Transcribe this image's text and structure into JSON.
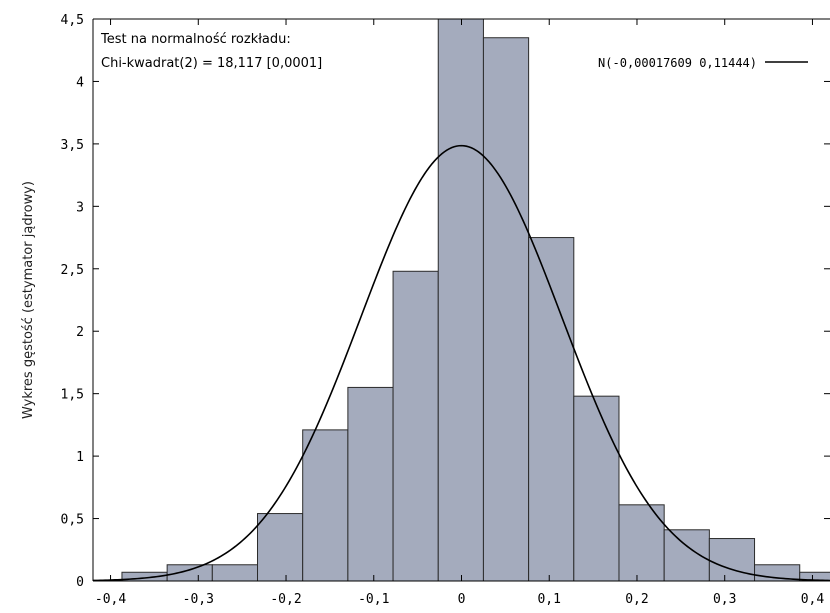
{
  "chart_data": {
    "type": "bar",
    "title": "",
    "xlabel": "",
    "ylabel": "Wykres gęstość (estymator jądrowy)",
    "xlim": [
      -0.42,
      0.42
    ],
    "ylim": [
      0,
      4.5
    ],
    "x_ticks": [
      -0.4,
      -0.3,
      -0.2,
      -0.1,
      0,
      0.1,
      0.2,
      0.3,
      0.4
    ],
    "x_tick_labels": [
      "-0,4",
      "-0,3",
      "-0,2",
      "-0,1",
      "0",
      "0,1",
      "0,2",
      "0,3",
      "0,4"
    ],
    "y_ticks": [
      0,
      0.5,
      1,
      1.5,
      2,
      2.5,
      3,
      3.5,
      4,
      4.5
    ],
    "y_tick_labels": [
      "0",
      "0,5",
      "1",
      "1,5",
      "2",
      "2,5",
      "3",
      "3,5",
      "4",
      "4,5"
    ],
    "bin_width": 0.0515,
    "bins": [
      {
        "x0": -0.387,
        "value": 0.07
      },
      {
        "x0": -0.3355,
        "value": 0.13
      },
      {
        "x0": -0.284,
        "value": 0.13
      },
      {
        "x0": -0.2325,
        "value": 0.54
      },
      {
        "x0": -0.181,
        "value": 1.21
      },
      {
        "x0": -0.1295,
        "value": 1.55
      },
      {
        "x0": -0.078,
        "value": 2.48
      },
      {
        "x0": -0.0265,
        "value": 4.5
      },
      {
        "x0": 0.025,
        "value": 4.35
      },
      {
        "x0": 0.0765,
        "value": 2.75
      },
      {
        "x0": 0.128,
        "value": 1.48
      },
      {
        "x0": 0.1795,
        "value": 0.61
      },
      {
        "x0": 0.231,
        "value": 0.41
      },
      {
        "x0": 0.2825,
        "value": 0.34
      },
      {
        "x0": 0.334,
        "value": 0.13
      },
      {
        "x0": 0.3855,
        "value": 0.07
      }
    ],
    "normal_curve": {
      "legend_label": "N(-0,00017609 0,11444)",
      "mean": -0.00017609,
      "sd": 0.11444
    },
    "annotation": {
      "line1": "Test na normalność rozkładu:",
      "line2": "Chi-kwadrat(2) = 18,117 [0,0001]"
    },
    "legend_position": "top-right",
    "grid": false
  }
}
